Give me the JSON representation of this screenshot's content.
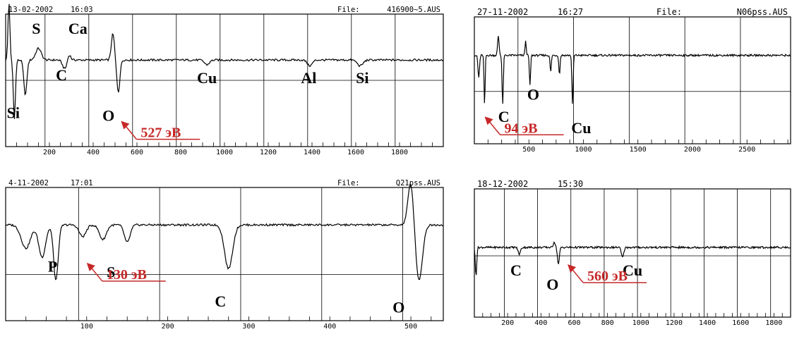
{
  "colors": {
    "trace": "#000000",
    "grid": "#000000",
    "annotation": "#c62828",
    "background": "#ffffff"
  },
  "chart_data": [
    {
      "type": "line",
      "header": {
        "date": "13-02-2002",
        "time": "16:03",
        "file_label": "File:",
        "file": "416900~5.AUS"
      },
      "xlim": [
        0,
        2000
      ],
      "xticks": [
        "200",
        "400",
        "600",
        "800",
        "1000",
        "1200",
        "1400",
        "1600",
        "1800"
      ],
      "xtick_values": [
        200,
        400,
        600,
        800,
        1000,
        1200,
        1400,
        1600,
        1800
      ],
      "vgrid": [
        180,
        380,
        580,
        780,
        980,
        1180,
        1380,
        1580,
        1780
      ],
      "baseline": 0.35,
      "hline": 0.0,
      "ylim": [
        -1.05,
        1.05
      ],
      "features": [
        {
          "x": 15,
          "amp": 1.0,
          "w": 6
        },
        {
          "x": 40,
          "amp": -1.0,
          "w": 7
        },
        {
          "x": 90,
          "amp": -0.6,
          "w": 10
        },
        {
          "x": 150,
          "amp": 0.2,
          "w": 18
        },
        {
          "x": 270,
          "amp": -0.15,
          "w": 14
        },
        {
          "x": 290,
          "amp": 0.1,
          "w": 10
        },
        {
          "x": 490,
          "amp": 0.45,
          "w": 10
        },
        {
          "x": 515,
          "amp": -0.55,
          "w": 10
        },
        {
          "x": 920,
          "amp": -0.08,
          "w": 16
        },
        {
          "x": 1390,
          "amp": -0.1,
          "w": 16
        },
        {
          "x": 1620,
          "amp": -0.1,
          "w": 18
        }
      ],
      "labels": [
        {
          "text": "Si",
          "x": 35,
          "y": -0.65
        },
        {
          "text": "S",
          "x": 140,
          "y": 0.8
        },
        {
          "text": "Ca",
          "x": 330,
          "y": 0.8
        },
        {
          "text": "C",
          "x": 255,
          "y": 0.0
        },
        {
          "text": "O",
          "x": 470,
          "y": -0.7
        },
        {
          "text": "Cu",
          "x": 920,
          "y": -0.05
        },
        {
          "text": "Al",
          "x": 1385,
          "y": -0.05
        },
        {
          "text": "Si",
          "x": 1630,
          "y": -0.05
        }
      ],
      "annotation": {
        "text": "527 эВ",
        "target_x": 527,
        "target_y": -0.7
      }
    },
    {
      "type": "line",
      "header": {
        "date": "27-11-2002",
        "time": "16:27",
        "file_label": "File:",
        "file": "N06pss.AUS"
      },
      "xlim": [
        0,
        2900
      ],
      "xticks": [
        "500",
        "1000",
        "1500",
        "2000",
        "2500"
      ],
      "xtick_values": [
        500,
        1000,
        1500,
        2000,
        2500
      ],
      "vgrid": [
        400,
        910,
        1420,
        1930,
        2440
      ],
      "baseline": 0.45,
      "hline": -0.2,
      "ylim": [
        -1.05,
        1.05
      ],
      "features": [
        {
          "x": 40,
          "amp": -0.4,
          "w": 10
        },
        {
          "x": 94,
          "amp": -0.9,
          "w": 7
        },
        {
          "x": 220,
          "amp": 0.35,
          "w": 10
        },
        {
          "x": 260,
          "amp": -0.9,
          "w": 8
        },
        {
          "x": 470,
          "amp": 0.25,
          "w": 8
        },
        {
          "x": 510,
          "amp": -0.55,
          "w": 8
        },
        {
          "x": 700,
          "amp": -0.3,
          "w": 8
        },
        {
          "x": 780,
          "amp": -0.35,
          "w": 8
        },
        {
          "x": 900,
          "amp": -0.9,
          "w": 8
        }
      ],
      "labels": [
        {
          "text": "C",
          "x": 270,
          "y": -0.75
        },
        {
          "text": "O",
          "x": 540,
          "y": -0.35
        },
        {
          "text": "Cu",
          "x": 980,
          "y": -0.95
        }
      ],
      "annotation": {
        "text": "94 эВ",
        "target_x": 94,
        "target_y": -0.65
      }
    },
    {
      "type": "line",
      "header": {
        "date": "4-11-2002",
        "time": "17:01",
        "file_label": "File:",
        "file": "Q21pss.AUS"
      },
      "xlim": [
        0,
        540
      ],
      "xticks": [
        "100",
        "200",
        "300",
        "400",
        "500"
      ],
      "xtick_values": [
        100,
        200,
        300,
        400,
        500
      ],
      "vgrid": [
        90,
        190,
        290,
        390,
        490
      ],
      "baseline": 0.5,
      "hline": -0.35,
      "ylim": [
        -1.05,
        1.05
      ],
      "features": [
        {
          "x": 25,
          "amp": -0.4,
          "w": 8
        },
        {
          "x": 45,
          "amp": -0.55,
          "w": 6
        },
        {
          "x": 62,
          "amp": -0.95,
          "w": 4
        },
        {
          "x": 95,
          "amp": -0.2,
          "w": 6
        },
        {
          "x": 120,
          "amp": -0.25,
          "w": 6
        },
        {
          "x": 150,
          "amp": -0.3,
          "w": 5
        },
        {
          "x": 275,
          "amp": -0.75,
          "w": 7
        },
        {
          "x": 500,
          "amp": 0.75,
          "w": 5
        },
        {
          "x": 510,
          "amp": -0.95,
          "w": 6
        }
      ],
      "labels": [
        {
          "text": "P",
          "x": 58,
          "y": -0.3
        },
        {
          "text": "S",
          "x": 130,
          "y": -0.4
        },
        {
          "text": "C",
          "x": 265,
          "y": -0.9
        },
        {
          "text": "O",
          "x": 485,
          "y": -1.0
        }
      ],
      "annotation": {
        "text": "130 эВ",
        "target_x": 100,
        "target_y": -0.15
      }
    },
    {
      "type": "line",
      "header": {
        "date": "18-12-2002",
        "time": "15:30",
        "file_label": "",
        "file": ""
      },
      "xlim": [
        0,
        1900
      ],
      "xticks": [
        "200",
        "400",
        "600",
        "800",
        "1000",
        "1200",
        "1400",
        "1600",
        "1800"
      ],
      "xtick_values": [
        200,
        400,
        600,
        800,
        1000,
        1200,
        1400,
        1600,
        1800
      ],
      "vgrid": [
        180,
        380,
        580,
        780,
        980,
        1180,
        1380,
        1580,
        1780
      ],
      "baseline": 0.1,
      "hline": -0.05,
      "ylim": [
        -1.05,
        1.05
      ],
      "features": [
        {
          "x": 10,
          "amp": -0.5,
          "w": 6
        },
        {
          "x": 270,
          "amp": -0.12,
          "w": 10
        },
        {
          "x": 480,
          "amp": 0.1,
          "w": 8
        },
        {
          "x": 505,
          "amp": -0.3,
          "w": 8
        },
        {
          "x": 890,
          "amp": -0.18,
          "w": 10
        }
      ],
      "labels": [
        {
          "text": "C",
          "x": 250,
          "y": -0.4
        },
        {
          "text": "O",
          "x": 470,
          "y": -0.65
        },
        {
          "text": "Cu",
          "x": 950,
          "y": -0.4
        }
      ],
      "annotation": {
        "text": "560 эВ",
        "target_x": 560,
        "target_y": -0.2
      }
    }
  ]
}
